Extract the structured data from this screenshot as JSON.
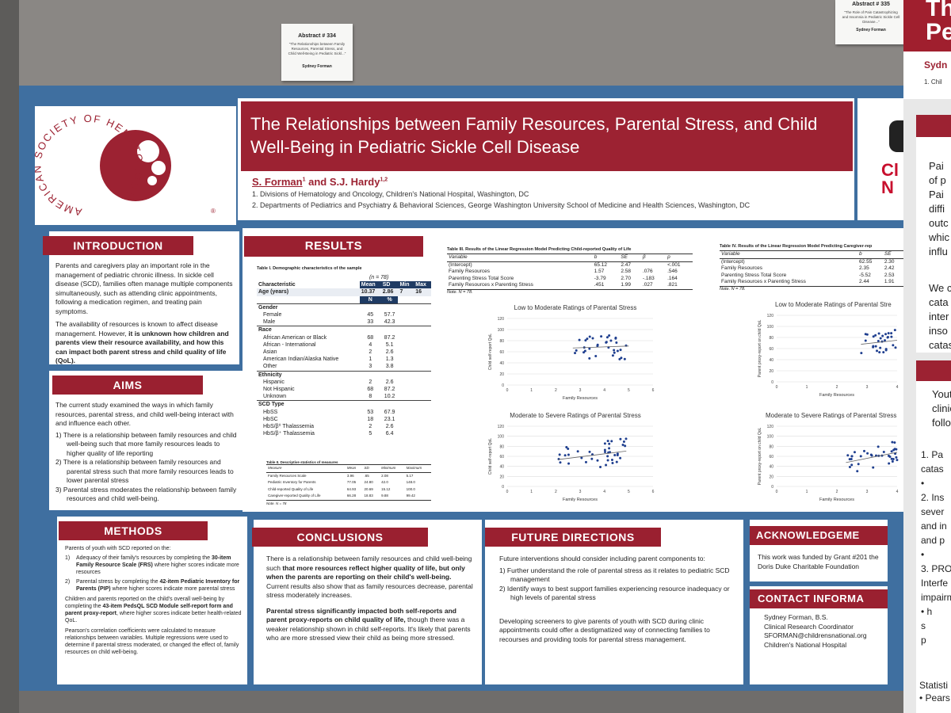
{
  "notes": {
    "abstract334": {
      "title": "Abstract # 334",
      "text": "\"The Relationships between Family Resources, Parental Stress, and Child Well-Being in Pediatric Sickl...\"",
      "author": "Sydney Forman"
    },
    "top_right": {
      "title": "Abstract # 335",
      "text": "\"The Role of Pain Catastrophizing and Insomnia in Pediatric Sickle Cell Disease...\"",
      "author": "Sydney Forman"
    }
  },
  "logo": {
    "text": "AMERICAN SOCIETY OF HEMATOLOGY",
    "mark": "®"
  },
  "title": "The Relationships between Family Resources, Parental Stress, and Child Well-Being in Pediatric Sickle Cell Disease",
  "authors": {
    "a1": "S. Forman",
    "a1_sup": "1",
    "and": "and",
    "a2": "S.J. Hardy",
    "a2_sup": "1,2"
  },
  "affiliations": [
    "1. Divisions of Hematology and Oncology, Children's National Hospital, Washington, DC",
    "2. Departments of Pediatrics and Psychiatry & Behavioral Sciences, George Washington University School of Medicine and Health Sciences, Washington, DC"
  ],
  "introduction": {
    "heading": "INTRODUCTION",
    "p1": "Parents and caregivers play an important role in the management of pediatric chronic illness. In sickle cell disease (SCD), families often manage multiple components simultaneously, such as attending clinic appointments, following a medication regimen, and treating pain symptoms.",
    "p2a": "The availability of resources is known to affect disease management. However, ",
    "p2b": "it is unknown how children and parents view their resource availability, and how this can impact both parent stress and child quality of life (QoL)."
  },
  "aims": {
    "heading": "AIMS",
    "intro": "The current study examined the ways in which family resources, parental stress, and child well-being interact with and influence each other.",
    "items": [
      "1)  There is a relationship between family resources and child well-being such that more family resources leads to higher quality of life reporting",
      "2)  There is a relationship between family resources and parental stress such that more family resources leads to lower parental stress",
      "3)  Parental stress moderates the relationship between family resources and child well-being."
    ]
  },
  "methods": {
    "heading": "METHODS",
    "intro": "Parents of youth with SCD reported on the:",
    "i1a": "Adequacy of their family's resources by completing the ",
    "i1b": "30-item Family Resource Scale (FRS)",
    "i1c": " where higher scores indicate more resources",
    "i2a": "Parental stress by completing the ",
    "i2b": "42-item Pediatric Inventory for Parents (PIP)",
    "i2c": " where higher scores indicate more parental stress",
    "p2a": "Children and parents reported on the child's overall well-being by completing the ",
    "p2b": "43-item PedsQL SCD Module self-report form and parent proxy-report",
    "p2c": ", where higher scores indicate better health-related QoL.",
    "p3": "Pearson's correlation coefficients were calculated to measure relationships between variables. Multiple regressions were used to determine if parental stress moderated, or changed the effect of, family resources on child well-being."
  },
  "results": {
    "heading": "RESULTS",
    "table1": {
      "caption": "Table I. Demographic characteristics of the sample",
      "n": "(n = 78)",
      "headers": [
        "Characteristic",
        "Mean",
        "SD",
        "Min",
        "Max"
      ],
      "age": [
        "Age (years)",
        "10.37",
        "2.86",
        "7",
        "16"
      ],
      "sub_headers": [
        "N",
        "%"
      ],
      "sections": [
        {
          "name": "Gender",
          "rows": [
            [
              "Female",
              "45",
              "57.7"
            ],
            [
              "Male",
              "33",
              "42.3"
            ]
          ]
        },
        {
          "name": "Race",
          "rows": [
            [
              "African American or Black",
              "68",
              "87.2"
            ],
            [
              "African - International",
              "4",
              "5.1"
            ],
            [
              "Asian",
              "2",
              "2.6"
            ],
            [
              "American Indian/Alaska Native",
              "1",
              "1.3"
            ],
            [
              "Other",
              "3",
              "3.8"
            ]
          ]
        },
        {
          "name": "Ethnicity",
          "rows": [
            [
              "Hispanic",
              "2",
              "2.6"
            ],
            [
              "Not Hispanic",
              "68",
              "87.2"
            ],
            [
              "Unknown",
              "8",
              "10.2"
            ]
          ]
        },
        {
          "name": "SCD Type",
          "rows": [
            [
              "HbSS",
              "53",
              "67.9"
            ],
            [
              "HbSC",
              "18",
              "23.1"
            ],
            [
              "HbS/β⁰ Thalassemia",
              "2",
              "2.6"
            ],
            [
              "HbS/β⁺ Thalassemia",
              "5",
              "6.4"
            ]
          ]
        }
      ]
    },
    "table2": {
      "caption": "Table II. Descriptive statistics of measures",
      "headers": [
        "Measure",
        "Mean",
        "SD",
        "Minimum",
        "Maximum"
      ],
      "rows": [
        [
          "Family Resources Scale",
          "3.96",
          ".65",
          "2.08",
          "5.17"
        ],
        [
          "Pediatric Inventory for Parents",
          "77.05",
          "24.80",
          "42.0",
          "148.0"
        ],
        [
          "Child-reported Quality of Life",
          "64.93",
          "20.69",
          "15.12",
          "100.0"
        ],
        [
          "Caregiver-reported Quality of Life",
          "66.28",
          "18.83",
          "9.88",
          "99.42"
        ]
      ],
      "note": "Note. N = 78"
    },
    "table3": {
      "caption": "Table III. Results of the Linear Regression Model Predicting Child-reported Quality of Life",
      "headers": [
        "Variable",
        "b",
        "SE",
        "β",
        "p"
      ],
      "rows": [
        [
          "(Intercept)",
          "65.12",
          "2.47",
          "",
          "<.001"
        ],
        [
          "Family Resources",
          "1.57",
          "2.58",
          ".076",
          ".546"
        ],
        [
          "Parenting Stress Total Score",
          "-3.79",
          "2.70",
          "-.183",
          ".164"
        ],
        [
          "Family Resources x Parenting Stress",
          ".451",
          "1.99",
          ".027",
          ".821"
        ]
      ],
      "note": "Note. N = 78."
    },
    "table4": {
      "caption": "Table IV. Results of the Linear Regression Model Predicting Caregiver-rep",
      "headers": [
        "Variable",
        "b",
        "SE"
      ],
      "rows": [
        [
          "(Intercept)",
          "62.55",
          "2.30"
        ],
        [
          "Family Resources",
          "2.35",
          "2.42"
        ],
        [
          "Parenting Stress Total Score",
          "-5.52",
          "2.53"
        ],
        [
          "Family Resources x Parenting Stress",
          "2.44",
          "1.91"
        ]
      ],
      "note": "Note. N = 78."
    },
    "plots": {
      "low_title": "Low to Moderate Ratings of Parental Stress",
      "low_title_right": "Low to Moderate Ratings of Parental Stre",
      "mod_title": "Moderate to Severe Ratings of Parental Stress",
      "xlabel": "Family Resources",
      "ylabel_child": "Child self-report QoL",
      "ylabel_parent": "Parent proxy-report on child QoL",
      "yticks": [
        "0",
        "20",
        "40",
        "60",
        "80",
        "100",
        "120"
      ],
      "xticks": [
        "0",
        "1",
        "2",
        "3",
        "4",
        "5",
        "6"
      ],
      "xticks_right": [
        "0",
        "1",
        "2",
        "3",
        "4"
      ]
    }
  },
  "conclusions": {
    "heading": "CONCLUSIONS",
    "p1a": "There is a relationship between family resources and child well-being such ",
    "p1b": "that more resources reflect higher quality of life, but only when the parents are reporting on their child's well-being.",
    "p1c": " Current results also show that as family resources decrease, parental stress moderately increases.",
    "p2a": "Parental stress significantly impacted both self-reports and parent proxy-reports on child quality of life,",
    "p2b": " though there was a weaker relationship shown in child self-reports. It's likely that parents who are more stressed view their child as being more stressed."
  },
  "future": {
    "heading": "FUTURE DIRECTIONS",
    "intro": "Future interventions should consider including parent components to:",
    "items": [
      "1)  Further understand the role of parental stress as it relates to pediatric SCD management",
      "2)  Identify ways to best support families experiencing resource inadequacy or high levels of parental stress"
    ],
    "p2": "Developing screeners to give parents of youth with SCD during clinic appointments could offer a destigmatized way of connecting families to recourses and providing tools for parental stress management."
  },
  "acknowledgements": {
    "heading": "ACKNOWLEDGEME",
    "text": "This work was funded by Grant #201 the Doris Duke Charitable Foundation"
  },
  "contact": {
    "heading": "CONTACT INFORMA",
    "lines": [
      "Sydney Forman, B.S.",
      "Clinical Research Coordinator",
      "SFORMAN@childrensnational.org",
      "Children's National Hospital"
    ]
  },
  "cnh_logo": {
    "l1": "Cl",
    "l2": "N"
  },
  "neighbor_poster": {
    "title_frag": "Pe",
    "title_frag2": "Th",
    "author_frag": "Sydn",
    "aff_frag": "1. Chil",
    "text1": [
      "Pai",
      "of p",
      "Pai",
      "diffi",
      "outc",
      "whic",
      "influ"
    ],
    "text2": [
      "We c",
      "cata",
      "inter",
      "inso",
      "catas"
    ],
    "text3": [
      "Yout",
      "clinic",
      "follow"
    ],
    "list": [
      "1. Pa",
      "catas",
      "•",
      "2. Ins",
      "sever",
      "and in",
      "and p",
      "•",
      "3. PRO",
      "Interfe",
      "impairm",
      "•  h",
      "s",
      "p"
    ],
    "bottom": [
      "Statisti",
      "•  Pears"
    ]
  },
  "colors": {
    "poster_red": "#9c2232",
    "poster_blue": "#3f6fa0",
    "plot_point": "#1f3f8f"
  }
}
